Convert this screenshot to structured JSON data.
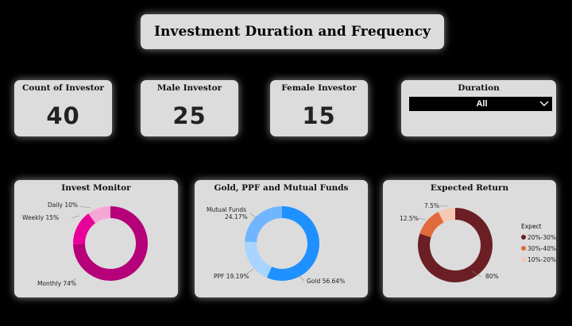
{
  "header": {
    "title": "Investment Duration and  Frequency"
  },
  "kpis": {
    "count": {
      "label": "Count of Investor",
      "value": "40"
    },
    "male": {
      "label": "Male Investor",
      "value": "25"
    },
    "female": {
      "label": "Female Investor",
      "value": "15"
    }
  },
  "slicer": {
    "label": "Duration",
    "selected": "All"
  },
  "colors": {
    "monthly": "#b5007a",
    "weekly": "#e8009a",
    "daily": "#f4a6d4",
    "gold": "#1e90ff",
    "ppf": "#a8d4ff",
    "mutual": "#6fb6ff",
    "r20_30": "#6b1f24",
    "r30_40": "#e06a3a",
    "r10_20": "#f6c8b4"
  },
  "chart_data": [
    {
      "type": "pie",
      "title": "Invest Monitor",
      "categories": [
        "Monthly",
        "Weekly",
        "Daily"
      ],
      "values": [
        74,
        15,
        10
      ],
      "labels": [
        "Monthly 74%",
        "Weekly 15%",
        "Daily 10%"
      ]
    },
    {
      "type": "pie",
      "title": "Gold, PPF and Mutual Funds",
      "categories": [
        "Gold",
        "PPF",
        "Mutual Funds"
      ],
      "values": [
        56.64,
        19.19,
        24.17
      ],
      "labels": [
        "Gold 56.64%",
        "PPF 19.19%",
        "Mutual Funds",
        "24.17%"
      ]
    },
    {
      "type": "pie",
      "title": "Expected Return",
      "categories": [
        "20%-30%",
        "30%-40%",
        "10%-20%"
      ],
      "values": [
        80,
        12.5,
        7.5
      ],
      "labels": [
        "80%",
        "12.5%",
        "7.5%"
      ],
      "legend": {
        "title": "Expect",
        "items": [
          "20%-30%",
          "30%-40%",
          "10%-20%"
        ],
        "position": "right"
      }
    }
  ]
}
